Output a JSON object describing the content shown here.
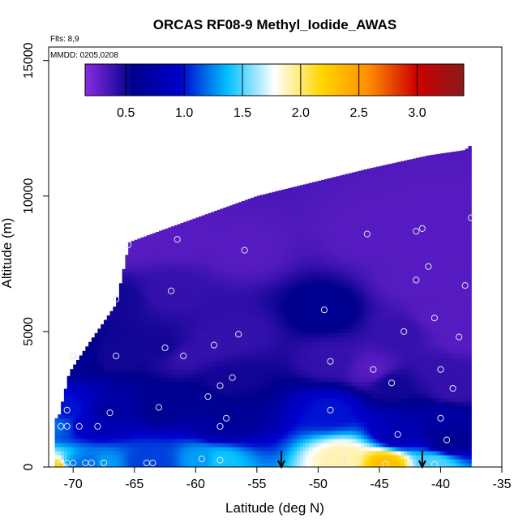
{
  "chart_data": {
    "type": "heatmap",
    "title": "ORCAS RF08-9 Methyl_Iodide_AWAS",
    "xlabel": "Latitude (deg N)",
    "ylabel": "Altitude (m)",
    "xlim": [
      -72,
      -35
    ],
    "ylim": [
      0,
      15500
    ],
    "xticks": [
      -70,
      -65,
      -60,
      -55,
      -50,
      -45,
      -40,
      -35
    ],
    "yticks": [
      0,
      5000,
      10000,
      15000
    ],
    "annotations": [
      "Flts: 8,9",
      "MMDD: 0205,0208"
    ],
    "colorbar": {
      "ticks": [
        0.5,
        1.0,
        1.5,
        2.0,
        2.5,
        3.0
      ],
      "tick_labels": [
        "0.5",
        "1.0",
        "1.5",
        "2.0",
        "2.5",
        "3.0"
      ],
      "range": [
        0.15,
        3.4
      ],
      "colors": [
        "#8a2be2",
        "#00008b",
        "#0000cd",
        "#00bfff",
        "#ffffff",
        "#ffd700",
        "#ff8c00",
        "#cd0000",
        "#8b1a1a"
      ]
    },
    "arrows_lat": [
      -53,
      -41.5
    ],
    "samples": [
      {
        "lat": -71.0,
        "alt": 100,
        "value": 2.3
      },
      {
        "lat": -70.5,
        "alt": 150,
        "value": 1.3
      },
      {
        "lat": -70.0,
        "alt": 150,
        "value": 1.2
      },
      {
        "lat": -69.0,
        "alt": 150,
        "value": 1.2
      },
      {
        "lat": -68.5,
        "alt": 150,
        "value": 1.2
      },
      {
        "lat": -67.5,
        "alt": 150,
        "value": 1.3
      },
      {
        "lat": -64.0,
        "alt": 150,
        "value": 1.1
      },
      {
        "lat": -63.5,
        "alt": 150,
        "value": 1.1
      },
      {
        "lat": -59.5,
        "alt": 300,
        "value": 1.3
      },
      {
        "lat": -58.0,
        "alt": 250,
        "value": 1.4
      },
      {
        "lat": -48.0,
        "alt": 300,
        "value": 1.9
      },
      {
        "lat": -44.5,
        "alt": 100,
        "value": 2.3
      },
      {
        "lat": -40.5,
        "alt": 100,
        "value": 1.5
      },
      {
        "lat": -71.0,
        "alt": 1500,
        "value": 1.2
      },
      {
        "lat": -70.5,
        "alt": 1500,
        "value": 1.1
      },
      {
        "lat": -69.5,
        "alt": 1500,
        "value": 0.9
      },
      {
        "lat": -68.0,
        "alt": 1500,
        "value": 0.8
      },
      {
        "lat": -70.5,
        "alt": 2100,
        "value": 1.0
      },
      {
        "lat": -67.0,
        "alt": 2000,
        "value": 0.7
      },
      {
        "lat": -63.0,
        "alt": 2200,
        "value": 0.6
      },
      {
        "lat": -58.0,
        "alt": 1500,
        "value": 0.7
      },
      {
        "lat": -57.5,
        "alt": 1800,
        "value": 0.6
      },
      {
        "lat": -49.0,
        "alt": 2100,
        "value": 1.0
      },
      {
        "lat": -43.5,
        "alt": 1200,
        "value": 0.8
      },
      {
        "lat": -40.0,
        "alt": 1800,
        "value": 0.7
      },
      {
        "lat": -39.5,
        "alt": 1000,
        "value": 0.6
      },
      {
        "lat": -59.0,
        "alt": 2600,
        "value": 0.6
      },
      {
        "lat": -58.0,
        "alt": 3000,
        "value": 0.5
      },
      {
        "lat": -57.0,
        "alt": 3300,
        "value": 0.5
      },
      {
        "lat": -44.0,
        "alt": 3100,
        "value": 0.5
      },
      {
        "lat": -39.0,
        "alt": 2900,
        "value": 0.4
      },
      {
        "lat": -70.0,
        "alt": 4100,
        "value": 0.6
      },
      {
        "lat": -66.5,
        "alt": 4100,
        "value": 0.5
      },
      {
        "lat": -62.5,
        "alt": 4400,
        "value": 0.5
      },
      {
        "lat": -61.0,
        "alt": 4100,
        "value": 0.4
      },
      {
        "lat": -58.5,
        "alt": 4500,
        "value": 0.4
      },
      {
        "lat": -56.5,
        "alt": 4900,
        "value": 0.4
      },
      {
        "lat": -49.0,
        "alt": 3900,
        "value": 0.4
      },
      {
        "lat": -45.5,
        "alt": 3600,
        "value": 0.3
      },
      {
        "lat": -40.0,
        "alt": 3600,
        "value": 0.4
      },
      {
        "lat": -38.5,
        "alt": 4800,
        "value": 0.3
      },
      {
        "lat": -43.0,
        "alt": 5000,
        "value": 0.4
      },
      {
        "lat": -66.5,
        "alt": 6200,
        "value": 0.5
      },
      {
        "lat": -62.0,
        "alt": 6500,
        "value": 0.4
      },
      {
        "lat": -49.5,
        "alt": 5800,
        "value": 0.6
      },
      {
        "lat": -40.5,
        "alt": 5500,
        "value": 0.3
      },
      {
        "lat": -38.0,
        "alt": 6700,
        "value": 0.3
      },
      {
        "lat": -42.0,
        "alt": 6900,
        "value": 0.3
      },
      {
        "lat": -41.0,
        "alt": 7400,
        "value": 0.3
      },
      {
        "lat": -65.5,
        "alt": 8200,
        "value": 0.3
      },
      {
        "lat": -61.5,
        "alt": 8400,
        "value": 0.3
      },
      {
        "lat": -56.0,
        "alt": 8000,
        "value": 0.3
      },
      {
        "lat": -46.0,
        "alt": 8600,
        "value": 0.3
      },
      {
        "lat": -42.0,
        "alt": 8700,
        "value": 0.3
      },
      {
        "lat": -41.5,
        "alt": 8800,
        "value": 0.3
      },
      {
        "lat": -37.5,
        "alt": 9200,
        "value": 0.3
      }
    ]
  }
}
